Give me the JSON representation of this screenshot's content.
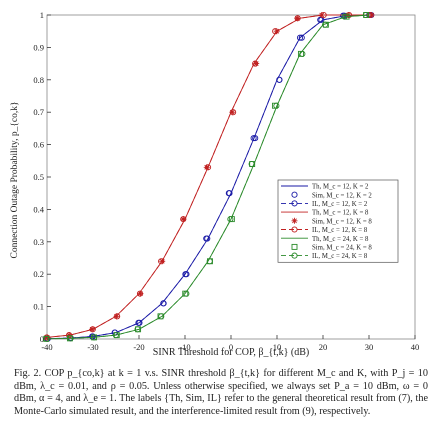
{
  "chart_data": {
    "type": "line",
    "xlabel": "SINR Threshold for COP, β_{t,k} (dB)",
    "ylabel": "Connection Outage Probability, p_{co,k}",
    "xlim": [
      -40,
      40
    ],
    "ylim": [
      0,
      1
    ],
    "x_ticks": [
      "-40",
      "-30",
      "-20",
      "-10",
      "0",
      "10",
      "20",
      "30",
      "40"
    ],
    "y_ticks": [
      "0",
      "0.1",
      "0.2",
      "0.3",
      "0.4",
      "0.5",
      "0.6",
      "0.7",
      "0.8",
      "0.9",
      "1"
    ],
    "grid": false,
    "legend_position": "center-right",
    "x": [
      -40,
      -35,
      -30,
      -25,
      -20,
      -15,
      -10,
      -5,
      0,
      5,
      10,
      15,
      20,
      25,
      30
    ],
    "series": [
      {
        "name": "Th, M_c = 12, K = 2",
        "color": "#1a1aa6",
        "dash": "",
        "marker": "none",
        "values": [
          0.001,
          0.003,
          0.008,
          0.02,
          0.05,
          0.11,
          0.2,
          0.31,
          0.45,
          0.62,
          0.8,
          0.93,
          0.985,
          0.998,
          1.0
        ]
      },
      {
        "name": "Sim, M_c = 12, K = 2",
        "color": "#1a1aa6",
        "dash": "none",
        "marker": "circle",
        "values": [
          0.001,
          0.003,
          0.008,
          0.02,
          0.05,
          0.11,
          0.2,
          0.31,
          0.45,
          0.62,
          0.8,
          0.93,
          0.985,
          0.998,
          1.0
        ]
      },
      {
        "name": "IL, M_c = 12, K = 2",
        "color": "#1a1aa6",
        "dash": "5,3",
        "marker": "circle",
        "values": [
          0.001,
          0.003,
          0.008,
          0.02,
          0.05,
          0.11,
          0.2,
          0.31,
          0.45,
          0.62,
          0.8,
          0.93,
          0.985,
          0.998,
          1.0
        ]
      },
      {
        "name": "Th, M_c = 12, K = 8",
        "color": "#c02020",
        "dash": "",
        "marker": "none",
        "values": [
          0.005,
          0.012,
          0.03,
          0.07,
          0.14,
          0.24,
          0.37,
          0.53,
          0.7,
          0.85,
          0.95,
          0.99,
          1.0,
          1.0,
          1.0
        ]
      },
      {
        "name": "Sim, M_c = 12, K = 8",
        "color": "#c02020",
        "dash": "none",
        "marker": "star",
        "values": [
          0.005,
          0.012,
          0.03,
          0.07,
          0.14,
          0.24,
          0.37,
          0.53,
          0.7,
          0.85,
          0.95,
          0.99,
          1.0,
          1.0,
          1.0
        ]
      },
      {
        "name": "IL, M_c = 12, K = 8",
        "color": "#c02020",
        "dash": "5,3",
        "marker": "circle",
        "values": [
          0.005,
          0.012,
          0.03,
          0.07,
          0.14,
          0.24,
          0.37,
          0.53,
          0.7,
          0.85,
          0.95,
          0.99,
          1.0,
          1.0,
          1.0
        ]
      },
      {
        "name": "Th, M_c = 24, K = 8",
        "color": "#2a8a2a",
        "dash": "",
        "marker": "none",
        "values": [
          0.0005,
          0.002,
          0.005,
          0.012,
          0.03,
          0.07,
          0.14,
          0.24,
          0.37,
          0.54,
          0.72,
          0.88,
          0.97,
          0.995,
          1.0
        ]
      },
      {
        "name": "Sim, M_c = 24, K = 8",
        "color": "#2a8a2a",
        "dash": "none",
        "marker": "square",
        "values": [
          0.0005,
          0.002,
          0.005,
          0.012,
          0.03,
          0.07,
          0.14,
          0.24,
          0.37,
          0.54,
          0.72,
          0.88,
          0.97,
          0.995,
          1.0
        ]
      },
      {
        "name": "IL, M_c = 24, K = 8",
        "color": "#2a8a2a",
        "dash": "5,3",
        "marker": "circle",
        "values": [
          0.0005,
          0.002,
          0.005,
          0.012,
          0.03,
          0.07,
          0.14,
          0.24,
          0.37,
          0.54,
          0.72,
          0.88,
          0.97,
          0.995,
          1.0
        ]
      }
    ]
  },
  "caption": "Fig. 2.   COP p_{co,k} at k = 1 v.s. SINR threshold β_{t,k} for different M_c and K, with P_j = 10 dBm, λ_c = 0.01, and ρ = 0.05. Unless otherwise specified, we always set P_a = 10 dBm, ω = 0 dBm, α = 4, and λ_e = 1. The labels {Th, Sim, IL} refer to the general theoretical result from (7), the Monte-Carlo simulated result, and the interference-limited result from (9), respectively."
}
